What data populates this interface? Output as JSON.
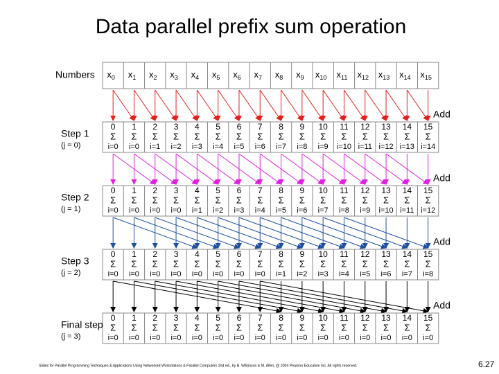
{
  "title": "Data parallel prefix sum operation",
  "sum_symbol": "Σ",
  "numbers": {
    "label": "Numbers",
    "base": "x",
    "subs": [
      "0",
      "1",
      "2",
      "3",
      "4",
      "5",
      "6",
      "7",
      "8",
      "9",
      "10",
      "11",
      "12",
      "13",
      "14",
      "15"
    ]
  },
  "steps": [
    {
      "label": "Step 1",
      "note": "(j = 0)",
      "add": "Add",
      "tops": [
        "0",
        "1",
        "2",
        "3",
        "4",
        "5",
        "6",
        "7",
        "8",
        "9",
        "10",
        "11",
        "12",
        "13",
        "14",
        "15"
      ],
      "bottoms": [
        "i=0",
        "i=0",
        "i=1",
        "i=2",
        "i=3",
        "i=4",
        "i=5",
        "i=6",
        "i=7",
        "i=8",
        "i=9",
        "i=10",
        "i=11",
        "i=12",
        "i=13",
        "i=14"
      ]
    },
    {
      "label": "Step 2",
      "note": "(j = 1)",
      "add": "Add",
      "tops": [
        "0",
        "1",
        "2",
        "3",
        "4",
        "5",
        "6",
        "7",
        "8",
        "9",
        "10",
        "11",
        "12",
        "13",
        "14",
        "15"
      ],
      "bottoms": [
        "i=0",
        "i=0",
        "i=0",
        "i=0",
        "i=1",
        "i=2",
        "i=3",
        "i=4",
        "i=5",
        "i=6",
        "i=7",
        "i=8",
        "i=9",
        "i=10",
        "i=11",
        "i=12"
      ]
    },
    {
      "label": "Step 3",
      "note": "(j = 2)",
      "add": "Add",
      "tops": [
        "0",
        "1",
        "2",
        "3",
        "4",
        "5",
        "6",
        "7",
        "8",
        "9",
        "10",
        "11",
        "12",
        "13",
        "14",
        "15"
      ],
      "bottoms": [
        "i=0",
        "i=0",
        "i=0",
        "i=0",
        "i=0",
        "i=0",
        "i=0",
        "i=0",
        "i=1",
        "i=2",
        "i=3",
        "i=4",
        "i=5",
        "i=6",
        "i=7",
        "i=8"
      ]
    },
    {
      "label": "Final step",
      "note": "(j = 3)",
      "add": "Add",
      "tops": [
        "0",
        "1",
        "2",
        "3",
        "4",
        "5",
        "6",
        "7",
        "8",
        "9",
        "10",
        "11",
        "12",
        "13",
        "14",
        "15"
      ],
      "bottoms": [
        "i=0",
        "i=0",
        "i=0",
        "i=0",
        "i=0",
        "i=0",
        "i=0",
        "i=0",
        "i=0",
        "i=0",
        "i=0",
        "i=0",
        "i=0",
        "i=0",
        "i=0",
        "i=0"
      ]
    }
  ],
  "footer": "Slides for Parallel Programming Techniques & Applications Using Networked Workstations & Parallel Computers 2nd ed., by B. Wilkinson & M. Allen, @ 2004 Pearson Education Inc. All rights reserved.",
  "page_number": "6.27"
}
